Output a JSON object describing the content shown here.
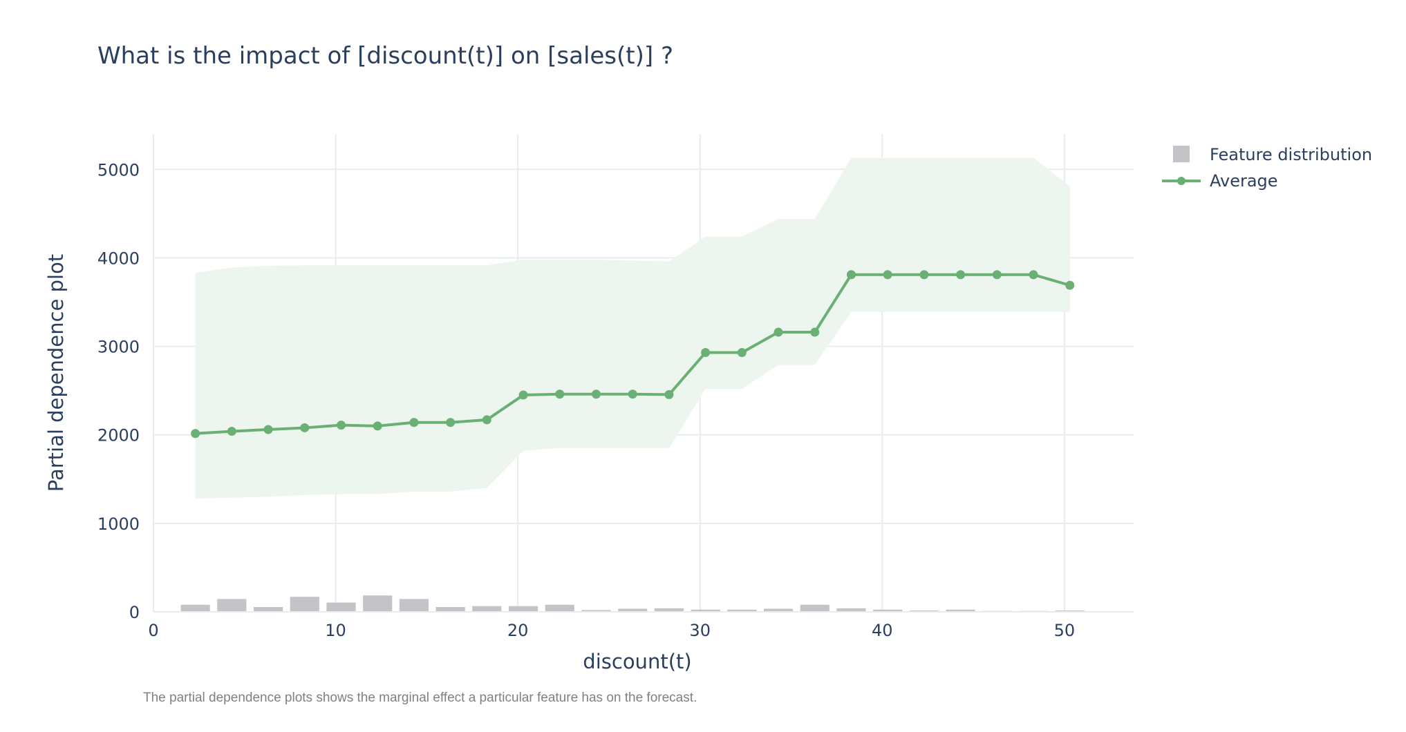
{
  "chart_data": {
    "type": "line",
    "title": "What is the impact of [discount(t)] on [sales(t)] ?",
    "xlabel": "discount(t)",
    "ylabel": "Partial dependence plot",
    "xlim": [
      0,
      53.8
    ],
    "ylim": [
      0,
      5400
    ],
    "x_ticks": [
      0,
      10,
      20,
      30,
      40,
      50
    ],
    "y_ticks": [
      0,
      1000,
      2000,
      3000,
      4000,
      5000
    ],
    "grid": true,
    "legend_position": "top-right",
    "note": "The partial dependence plots shows the marginal effect a particular feature has on the forecast.",
    "colors": {
      "average": "#6aaf73",
      "band": "#ecf6ee",
      "bars": "#c4c4c8",
      "grid": "#e8ecf0",
      "text": "#2a3f5f",
      "note": "#808080"
    },
    "series": [
      {
        "name": "Average",
        "x": [
          2.3,
          4.3,
          6.3,
          8.3,
          10.3,
          12.3,
          14.3,
          16.3,
          18.3,
          20.3,
          22.3,
          24.3,
          26.3,
          28.3,
          30.3,
          32.3,
          34.3,
          36.3,
          38.3,
          40.3,
          42.3,
          44.3,
          46.3,
          48.3,
          50.3
        ],
        "values": [
          2015,
          2040,
          2060,
          2080,
          2110,
          2100,
          2140,
          2140,
          2170,
          2450,
          2460,
          2460,
          2460,
          2455,
          2930,
          2930,
          3160,
          3160,
          3810,
          3810,
          3810,
          3810,
          3810,
          3810,
          3690
        ],
        "upper": [
          3830,
          3890,
          3910,
          3915,
          3915,
          3915,
          3915,
          3915,
          3915,
          3980,
          3980,
          3980,
          3970,
          3960,
          4240,
          4240,
          4440,
          4440,
          5130,
          5130,
          5130,
          5130,
          5130,
          5130,
          4810
        ],
        "lower": [
          1280,
          1290,
          1300,
          1320,
          1330,
          1330,
          1360,
          1360,
          1400,
          1820,
          1850,
          1850,
          1850,
          1850,
          2520,
          2520,
          2790,
          2790,
          3390,
          3390,
          3390,
          3390,
          3390,
          3390,
          3390
        ]
      },
      {
        "name": "Feature distribution",
        "type": "bar",
        "x": [
          2.3,
          4.3,
          6.3,
          8.3,
          10.3,
          12.3,
          14.3,
          16.3,
          18.3,
          20.3,
          22.3,
          24.3,
          26.3,
          28.3,
          30.3,
          32.3,
          34.3,
          36.3,
          38.3,
          40.3,
          42.3,
          44.3,
          46.3,
          48.3,
          50.3
        ],
        "values": [
          80,
          145,
          55,
          170,
          105,
          185,
          145,
          55,
          65,
          65,
          80,
          20,
          35,
          40,
          25,
          25,
          35,
          80,
          40,
          25,
          15,
          25,
          10,
          10,
          15
        ]
      }
    ]
  }
}
